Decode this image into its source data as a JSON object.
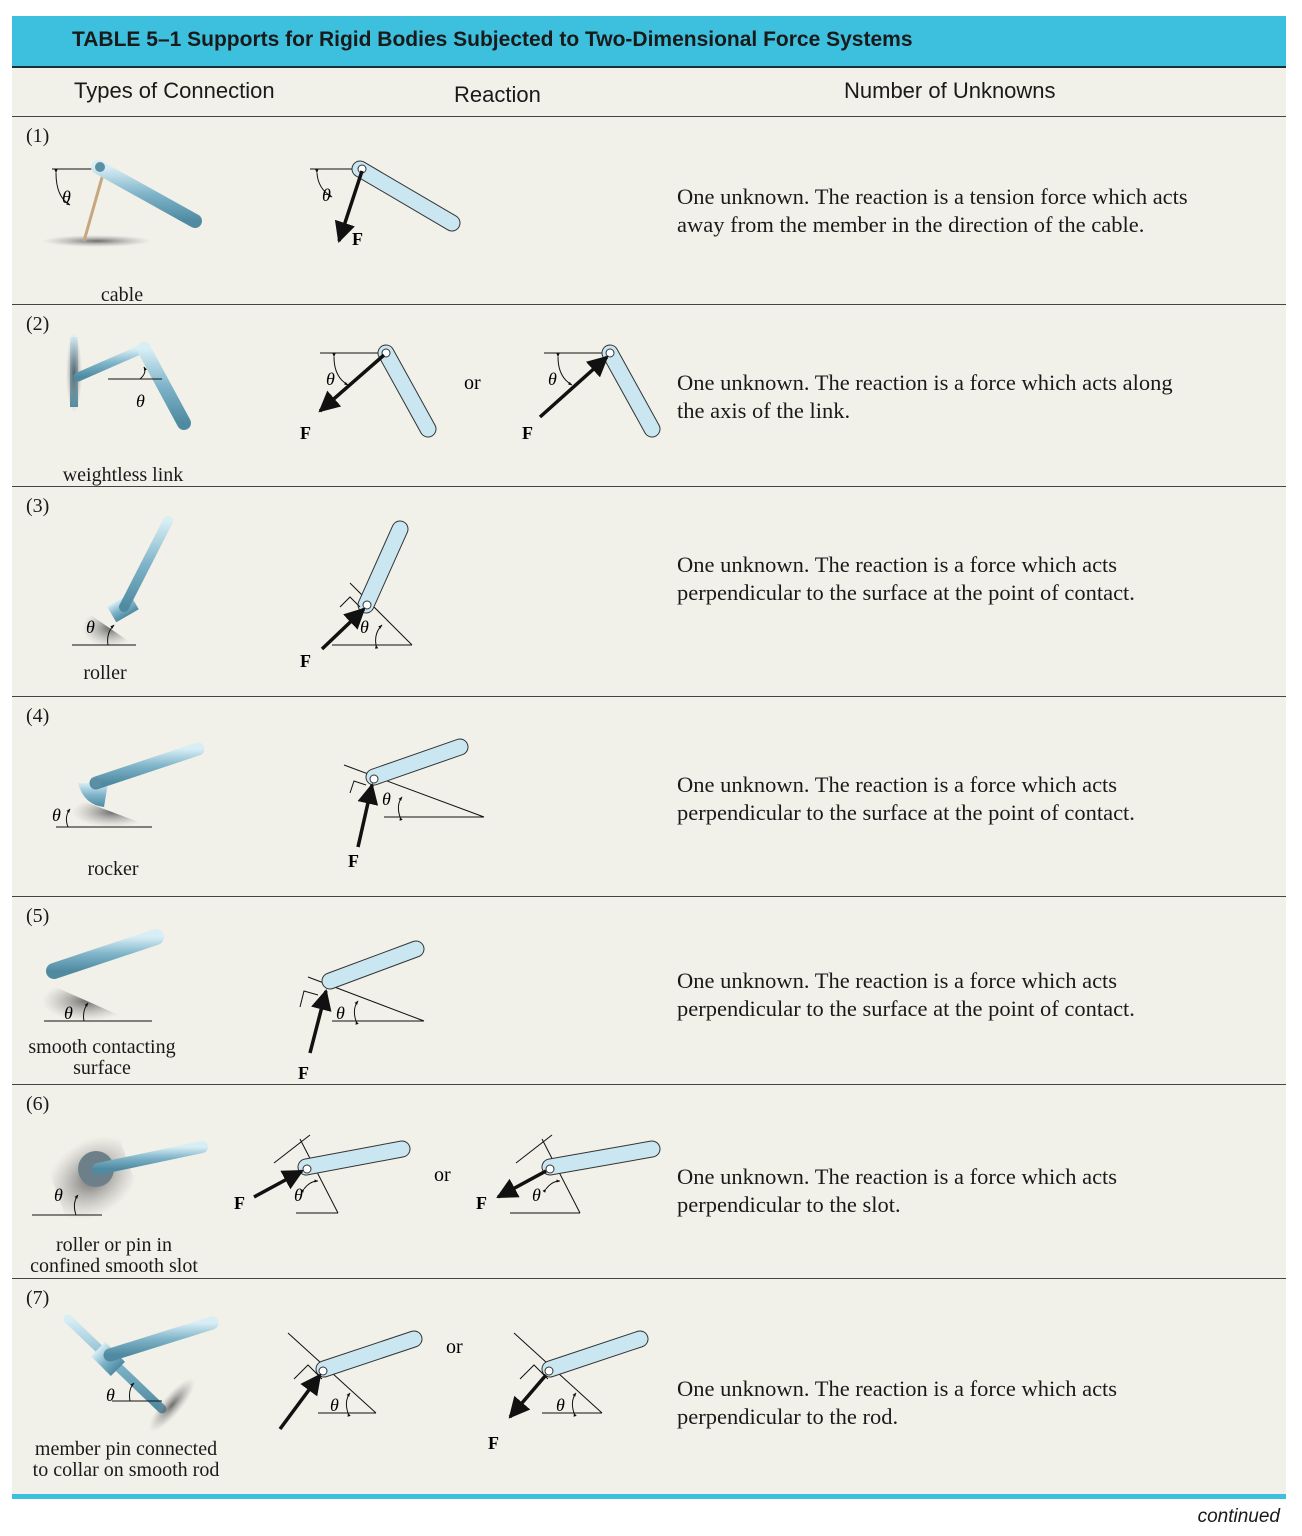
{
  "title": "TABLE 5–1  Supports for Rigid Bodies Subjected to Two-Dimensional Force Systems",
  "headers": {
    "connection": "Types of Connection",
    "reaction": "Reaction",
    "unknowns": "Number of Unknowns"
  },
  "symbols": {
    "theta": "θ",
    "force": "F",
    "or": "or"
  },
  "rows": [
    {
      "num": "(1)",
      "caption": "cable",
      "desc_line1": "One unknown. The reaction is a tension force which acts",
      "desc_line2": "away from the member in the direction of the cable."
    },
    {
      "num": "(2)",
      "caption": "weightless link",
      "desc_line1": "One unknown. The reaction is a force which acts along",
      "desc_line2": "the axis of the link."
    },
    {
      "num": "(3)",
      "caption": "roller",
      "desc_line1": "One unknown. The reaction is a force which acts",
      "desc_line2": "perpendicular to the surface at the point of contact."
    },
    {
      "num": "(4)",
      "caption": "rocker",
      "desc_line1": "One unknown. The reaction is a force which acts",
      "desc_line2": "perpendicular to the surface at the point of contact."
    },
    {
      "num": "(5)",
      "caption_line1": "smooth contacting",
      "caption_line2": "surface",
      "desc_line1": "One unknown. The reaction is a force which acts",
      "desc_line2": "perpendicular to the surface at the point of contact."
    },
    {
      "num": "(6)",
      "caption_line1": "roller or pin in",
      "caption_line2": "confined smooth slot",
      "desc_line1": "One unknown. The reaction is a force which acts",
      "desc_line2": "perpendicular to the slot."
    },
    {
      "num": "(7)",
      "caption_line1": "member pin connected",
      "caption_line2": "to collar on smooth rod",
      "desc_line1": "One unknown. The reaction is a force which acts",
      "desc_line2": "perpendicular to the rod."
    }
  ],
  "footer": "continued",
  "colors": {
    "accent": "#3cc0de",
    "sheet": "#f1f0e9",
    "member": "#a9d8e8",
    "metal": "#7fb4c9"
  }
}
